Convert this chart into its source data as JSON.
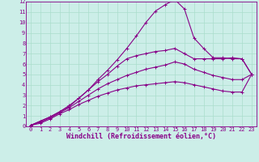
{
  "background_color": "#cceee8",
  "line_color": "#880088",
  "grid_color": "#aaddcc",
  "xlabel": "Windchill (Refroidissement éolien,°C)",
  "xlim": [
    -0.5,
    23.5
  ],
  "ylim": [
    0,
    12
  ],
  "xticks": [
    0,
    1,
    2,
    3,
    4,
    5,
    6,
    7,
    8,
    9,
    10,
    11,
    12,
    13,
    14,
    15,
    16,
    17,
    18,
    19,
    20,
    21,
    22,
    23
  ],
  "yticks": [
    0,
    1,
    2,
    3,
    4,
    5,
    6,
    7,
    8,
    9,
    10,
    11,
    12
  ],
  "curves": [
    [
      0.1,
      0.5,
      0.9,
      1.4,
      1.9,
      2.7,
      3.5,
      4.5,
      5.4,
      6.4,
      7.5,
      8.7,
      10.0,
      11.1,
      11.7,
      12.2,
      11.3,
      8.5,
      7.5,
      6.6,
      6.6,
      6.5,
      6.5,
      5.0
    ],
    [
      0.1,
      0.5,
      0.9,
      1.4,
      2.0,
      2.7,
      3.5,
      4.3,
      5.0,
      5.8,
      6.5,
      6.8,
      7.0,
      7.2,
      7.3,
      7.5,
      7.0,
      6.5,
      6.5,
      6.5,
      6.5,
      6.6,
      6.5,
      5.0
    ],
    [
      0.1,
      0.4,
      0.8,
      1.3,
      1.8,
      2.4,
      3.0,
      3.6,
      4.1,
      4.5,
      4.9,
      5.2,
      5.5,
      5.7,
      5.9,
      6.2,
      6.0,
      5.5,
      5.2,
      4.9,
      4.7,
      4.5,
      4.5,
      5.0
    ],
    [
      0.1,
      0.3,
      0.7,
      1.2,
      1.6,
      2.1,
      2.5,
      2.9,
      3.2,
      3.5,
      3.7,
      3.9,
      4.0,
      4.1,
      4.2,
      4.3,
      4.2,
      4.0,
      3.8,
      3.6,
      3.4,
      3.3,
      3.3,
      5.0
    ]
  ],
  "marker": "+",
  "markersize": 3,
  "linewidth": 0.8,
  "tick_fontsize": 5.0,
  "label_fontsize": 6.0
}
